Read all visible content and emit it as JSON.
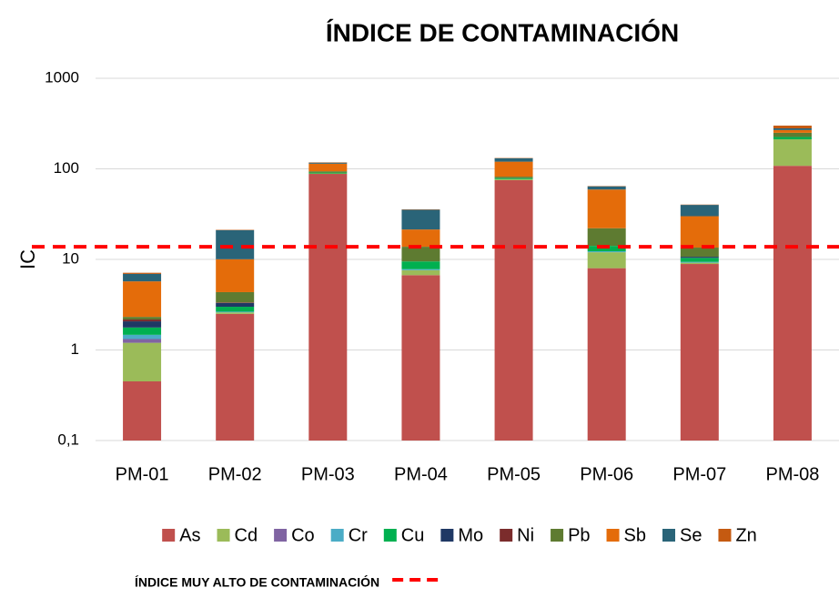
{
  "chart_data": {
    "type": "bar",
    "stacked": true,
    "log_scale": true,
    "grid": true,
    "title": "ÍNDICE DE CONTAMINACIÓN",
    "y_label": "IC",
    "categories": [
      "PM-01",
      "PM-02",
      "PM-03",
      "PM-04",
      "PM-05",
      "PM-06",
      "PM-07",
      "PM-08"
    ],
    "series": [
      {
        "name": "As",
        "color": "#c0504d",
        "values": [
          0.45,
          2.5,
          88,
          6.7,
          75,
          8,
          8.9,
          108
        ]
      },
      {
        "name": "Cd",
        "color": "#9bbb59",
        "values": [
          0.75,
          0.1,
          1,
          0.9,
          2,
          4,
          0.3,
          104
        ]
      },
      {
        "name": "Co",
        "color": "#8064a2",
        "values": [
          0.12,
          0,
          0,
          0,
          0,
          0,
          0,
          0
        ]
      },
      {
        "name": "Cr",
        "color": "#4bacc6",
        "values": [
          0.15,
          0.05,
          0,
          0.2,
          0,
          0.3,
          0.2,
          0
        ]
      },
      {
        "name": "Cu",
        "color": "#00b050",
        "values": [
          0.3,
          0.35,
          2,
          1.7,
          2,
          1.8,
          1.0,
          13
        ]
      },
      {
        "name": "Mo",
        "color": "#1f3864",
        "values": [
          0.3,
          0.3,
          0,
          0,
          0,
          0,
          0.3,
          0
        ]
      },
      {
        "name": "Ni",
        "color": "#7b2c2c",
        "values": [
          0.1,
          0.05,
          0,
          0,
          0,
          0,
          0,
          0
        ]
      },
      {
        "name": "Pb",
        "color": "#5e7b31",
        "values": [
          0.15,
          1.0,
          3,
          4.3,
          3,
          8,
          2.8,
          25
        ]
      },
      {
        "name": "Sb",
        "color": "#e46c0a",
        "values": [
          3.4,
          5.7,
          20,
          7.6,
          38,
          37,
          16.5,
          18
        ]
      },
      {
        "name": "Se",
        "color": "#2a6478",
        "values": [
          1.2,
          11,
          3,
          14,
          11,
          5,
          10,
          12
        ]
      },
      {
        "name": "Zn",
        "color": "#c55a11",
        "values": [
          0.2,
          0.2,
          1,
          0.3,
          1,
          0.5,
          0.3,
          20
        ]
      }
    ],
    "ylim": [
      0.1,
      1000
    ],
    "yticks": [
      {
        "value": 0.1,
        "label": "0,1"
      },
      1,
      10,
      100,
      1000
    ],
    "threshold": {
      "value": 13.8,
      "label": "ÍNDICE MUY ALTO DE CONTAMINACIÓN",
      "color": "#ff0000"
    }
  }
}
